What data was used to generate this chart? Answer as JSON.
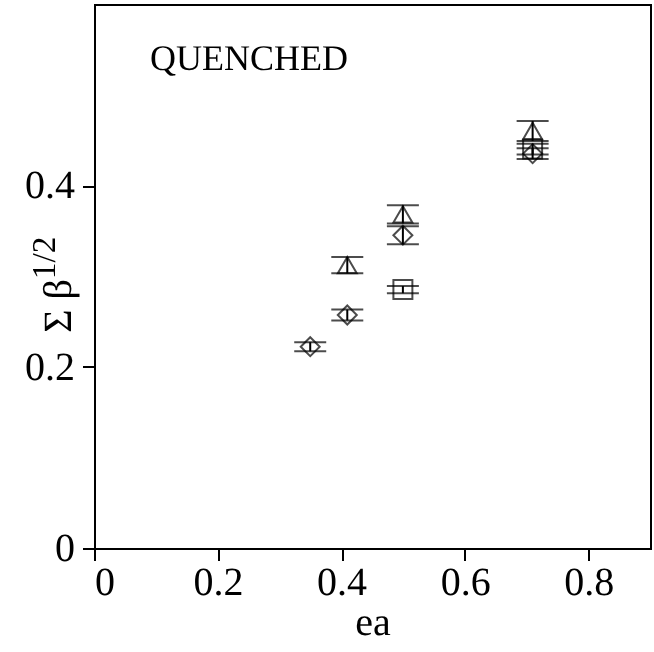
{
  "chart_data": {
    "type": "scatter",
    "xlabel": "ea",
    "ylabel": "Σ β$^{1/2}$",
    "annotations": [
      "QUENCHED"
    ],
    "xlim": [
      0,
      0.9
    ],
    "xticks": [
      0,
      0.2,
      0.4,
      0.6,
      0.8
    ],
    "ylim": [
      0,
      0.6
    ],
    "yticks": [
      0,
      0.2,
      0.4
    ],
    "series": [
      {
        "color": "#000000",
        "marker": "triangle",
        "x": [
          0.41,
          0.5,
          0.71
        ],
        "values": [
          0.312,
          0.368,
          0.46
        ],
        "errors": [
          0.009,
          0.01,
          0.011
        ]
      },
      {
        "color": "#000000",
        "marker": "diamond",
        "x": [
          0.35,
          0.41,
          0.5,
          0.71
        ],
        "values": [
          0.222,
          0.257,
          0.345,
          0.435
        ],
        "errors": [
          0.005,
          0.006,
          0.01,
          0.006
        ]
      },
      {
        "color": "#000000",
        "marker": "square",
        "x": [
          0.5,
          0.71
        ],
        "values": [
          0.285,
          0.44
        ],
        "errors": [
          0.004,
          0.006
        ]
      }
    ]
  }
}
